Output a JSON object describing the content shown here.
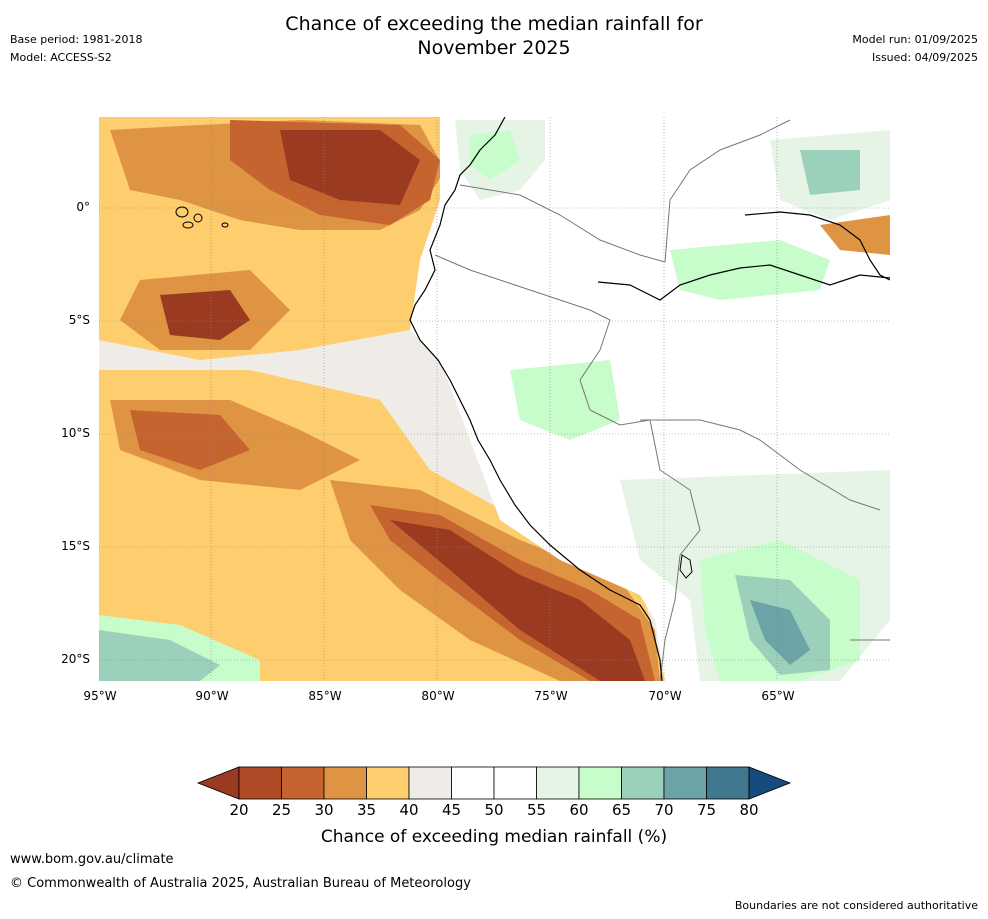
{
  "title_line1": "Chance of exceeding the median rainfall for",
  "title_line2": "November 2025",
  "meta_left": {
    "base_period": "Base period: 1981-2018",
    "model": "Model: ACCESS-S2"
  },
  "meta_right": {
    "model_run": "Model run: 01/09/2025",
    "issued": "Issued: 04/09/2025"
  },
  "lat_labels": [
    "0°",
    "5°S",
    "10°S",
    "15°S",
    "20°S"
  ],
  "lon_labels": [
    "95°W",
    "90°W",
    "85°W",
    "80°W",
    "75°W",
    "70°W",
    "65°W"
  ],
  "colorbar": {
    "ticks": [
      "20",
      "25",
      "30",
      "35",
      "40",
      "45",
      "50",
      "55",
      "60",
      "65",
      "70",
      "75",
      "80"
    ],
    "colors": [
      "#9a3a21",
      "#ae4a25",
      "#c6642f",
      "#df9444",
      "#fecd6e",
      "#efebe6",
      "#ffffff",
      "#ffffff",
      "#e6f4e6",
      "#c7fccb",
      "#9bd1bb",
      "#6ba3a6",
      "#40788f",
      "#174a7e"
    ],
    "label": "Chance of exceeding median rainfall (%)"
  },
  "footer": {
    "url": "www.bom.gov.au/climate",
    "copyright": "© Commonwealth of Australia 2025, Australian Bureau of Meteorology",
    "note": "Boundaries are not considered authoritative"
  }
}
